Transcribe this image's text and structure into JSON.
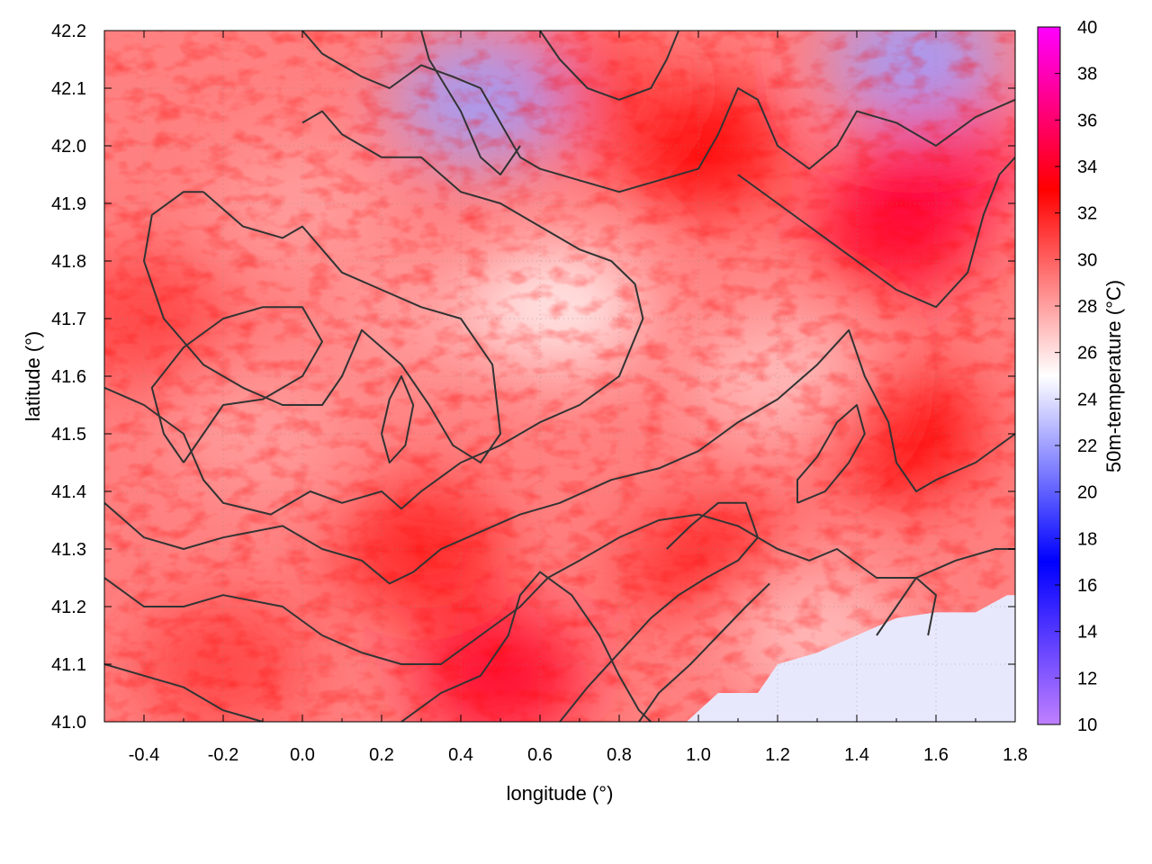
{
  "chart_data": {
    "type": "heatmap",
    "title": "",
    "xlabel": "longitude (°)",
    "ylabel": "latitude (°)",
    "colorbar_label": "50m-temperature (°C)",
    "xlim": [
      -0.5,
      1.8
    ],
    "ylim": [
      41.0,
      42.2
    ],
    "x_ticks": [
      -0.4,
      -0.2,
      0.0,
      0.2,
      0.4,
      0.6,
      0.8,
      1.0,
      1.2,
      1.4,
      1.6,
      1.8
    ],
    "x_tick_labels": [
      "-0.4",
      "-0.2",
      "0.0",
      "0.2",
      "0.4",
      "0.6",
      "0.8",
      "1.0",
      "1.2",
      "1.4",
      "1.6",
      "1.8"
    ],
    "y_ticks": [
      41.0,
      41.1,
      41.2,
      41.3,
      41.4,
      41.5,
      41.6,
      41.7,
      41.8,
      41.9,
      42.0,
      42.1,
      42.2
    ],
    "y_tick_labels": [
      "41.0",
      "41.1",
      "41.2",
      "41.3",
      "41.4",
      "41.5",
      "41.6",
      "41.7",
      "41.8",
      "41.9",
      "42.0",
      "42.1",
      "42.2"
    ],
    "colorbar_range": [
      10,
      40
    ],
    "colorbar_ticks": [
      10,
      12,
      14,
      16,
      18,
      20,
      22,
      24,
      26,
      28,
      30,
      32,
      34,
      36,
      38,
      40
    ],
    "colorbar_tick_labels": [
      "10",
      "12",
      "14",
      "16",
      "18",
      "20",
      "22",
      "24",
      "26",
      "28",
      "30",
      "32",
      "34",
      "36",
      "38",
      "40"
    ],
    "colormap": [
      {
        "value": 10,
        "color": "#c080ff"
      },
      {
        "value": 17,
        "color": "#0000ff"
      },
      {
        "value": 25,
        "color": "#ffffff"
      },
      {
        "value": 33,
        "color": "#ff0000"
      },
      {
        "value": 40,
        "color": "#ff00ff"
      }
    ],
    "sea_temperature": 24.5,
    "overlay": "terrain elevation contours (black lines)",
    "grid": true,
    "temperature_regions": [
      {
        "lon": 0.3,
        "lat": 41.3,
        "t": 32
      },
      {
        "lon": 0.5,
        "lat": 41.08,
        "t": 34
      },
      {
        "lon": -0.2,
        "lat": 41.1,
        "t": 31
      },
      {
        "lon": 1.5,
        "lat": 41.85,
        "t": 34
      },
      {
        "lon": 1.6,
        "lat": 42.0,
        "t": 35
      },
      {
        "lon": 1.0,
        "lat": 42.0,
        "t": 33
      },
      {
        "lon": 0.7,
        "lat": 42.1,
        "t": 31
      },
      {
        "lon": 0.45,
        "lat": 42.08,
        "t": 22
      },
      {
        "lon": 1.55,
        "lat": 42.15,
        "t": 22
      },
      {
        "lon": 1.0,
        "lat": 41.3,
        "t": 32
      },
      {
        "lon": 1.5,
        "lat": 41.5,
        "t": 33
      },
      {
        "lon": 0.3,
        "lat": 41.7,
        "t": 28
      },
      {
        "lon": 0.65,
        "lat": 41.72,
        "t": 25.5
      },
      {
        "lon": -0.1,
        "lat": 41.5,
        "t": 28
      },
      {
        "lon": 0.0,
        "lat": 41.9,
        "t": 28
      },
      {
        "lon": -0.4,
        "lat": 41.7,
        "t": 31
      },
      {
        "lon": 1.2,
        "lat": 41.6,
        "t": 27
      },
      {
        "lon": 0.8,
        "lat": 41.45,
        "t": 29
      },
      {
        "lon": 1.3,
        "lat": 41.15,
        "t": 27
      }
    ]
  }
}
